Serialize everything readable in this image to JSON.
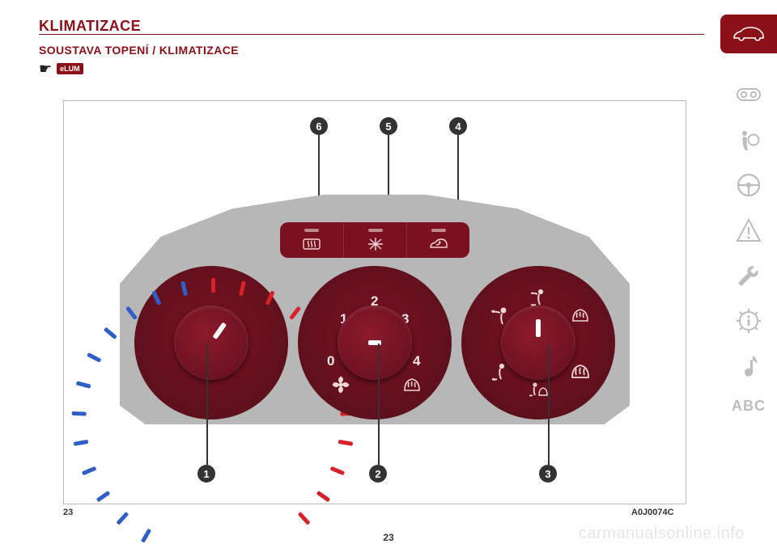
{
  "headings": {
    "h1": "KLIMATIZACE",
    "h2": "SOUSTAVA TOPENÍ / KLIMATIZACE",
    "elum": "eLUM"
  },
  "figure": {
    "left_no": "23",
    "right_no": "A0J0074C"
  },
  "page_no": "23",
  "watermark": "carmanualsonline.info",
  "sidebar": {
    "abc": "ABC"
  },
  "colors": {
    "brand": "#8c1018",
    "dial_dark": "#5b101c",
    "dial_light": "#7a1022",
    "panel_gray": "#b7b7b7",
    "tick_cold": "#2e5ec8",
    "tick_hot": "#d82028",
    "marker": "#333333",
    "side_gray": "#bdbdbd"
  },
  "callouts": {
    "c1": "1",
    "c2": "2",
    "c3": "3",
    "c4": "4",
    "c5": "5",
    "c6": "6"
  },
  "fan_dial": {
    "n0": "0",
    "n1": "1",
    "n2": "2",
    "n3": "3",
    "n4": "4"
  },
  "temp_ticks": {
    "count_cold": 12,
    "count_hot": 12,
    "start_deg": -150,
    "step_deg": 12.5
  }
}
